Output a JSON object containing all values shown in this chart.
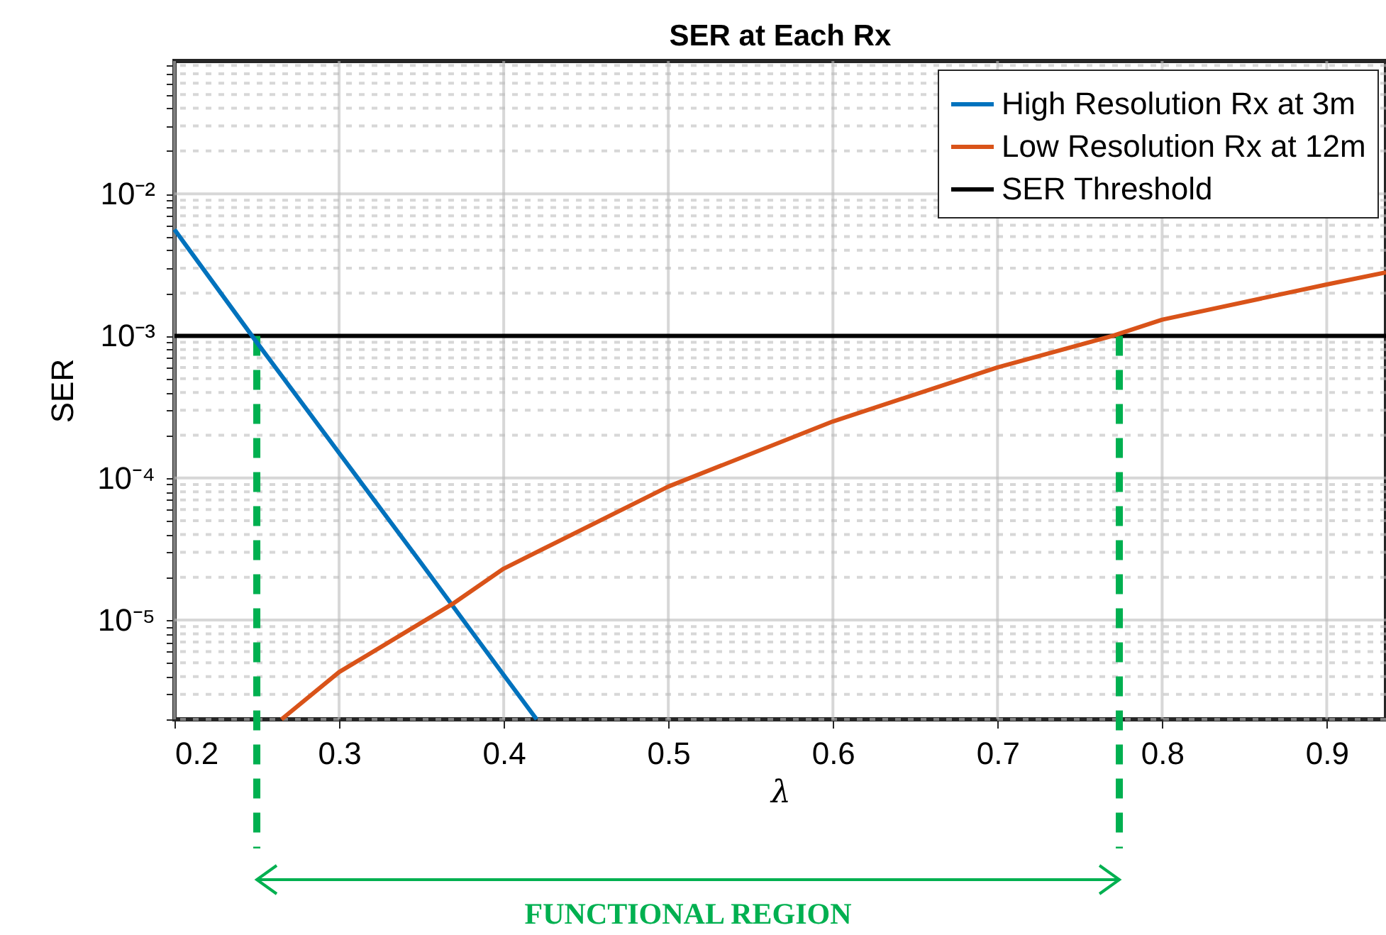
{
  "chart_data": {
    "type": "line",
    "title": "SER at Each Rx",
    "xlabel": "λ",
    "ylabel": "SER",
    "log": "y",
    "grid": true,
    "legend": "top right",
    "line_style": "solid",
    "marker": "none",
    "xlim": [
      0.2,
      0.936
    ],
    "xticks": [
      0.2,
      0.3,
      0.4,
      0.5,
      0.6,
      0.7,
      0.8,
      0.9
    ],
    "ylim": [
      2e-06,
      0.086
    ],
    "yticks": [
      {
        "value": 2e-06,
        "label": null
      },
      {
        "value": 3e-06,
        "label": null
      },
      {
        "value": 4e-06,
        "label": null
      },
      {
        "value": 5e-06,
        "label": null
      },
      {
        "value": 6e-06,
        "label": null
      },
      {
        "value": 7e-06,
        "label": null
      },
      {
        "value": 8e-06,
        "label": null
      },
      {
        "value": 9e-06,
        "label": null
      },
      {
        "value": 1e-05,
        "label": "10⁻⁵"
      },
      {
        "value": 2e-05,
        "label": null
      },
      {
        "value": 3e-05,
        "label": null
      },
      {
        "value": 4e-05,
        "label": null
      },
      {
        "value": 5e-05,
        "label": null
      },
      {
        "value": 6e-05,
        "label": null
      },
      {
        "value": 7e-05,
        "label": null
      },
      {
        "value": 8e-05,
        "label": null
      },
      {
        "value": 9e-05,
        "label": null
      },
      {
        "value": 0.0001,
        "label": "10⁻⁴"
      },
      {
        "value": 0.0002,
        "label": null
      },
      {
        "value": 0.0003,
        "label": null
      },
      {
        "value": 0.0004,
        "label": null
      },
      {
        "value": 0.0005,
        "label": null
      },
      {
        "value": 0.0006,
        "label": null
      },
      {
        "value": 0.0007,
        "label": null
      },
      {
        "value": 0.0008,
        "label": null
      },
      {
        "value": 0.0009,
        "label": null
      },
      {
        "value": 0.001,
        "label": "10⁻³"
      },
      {
        "value": 0.002,
        "label": null
      },
      {
        "value": 0.003,
        "label": null
      },
      {
        "value": 0.004,
        "label": null
      },
      {
        "value": 0.005,
        "label": null
      },
      {
        "value": 0.006,
        "label": null
      },
      {
        "value": 0.007,
        "label": null
      },
      {
        "value": 0.008,
        "label": null
      },
      {
        "value": 0.009,
        "label": null
      },
      {
        "value": 0.01,
        "label": "10⁻²"
      },
      {
        "value": 0.02,
        "label": null
      },
      {
        "value": 0.03,
        "label": null
      },
      {
        "value": 0.04,
        "label": null
      },
      {
        "value": 0.05,
        "label": null
      },
      {
        "value": 0.06,
        "label": null
      },
      {
        "value": 0.07,
        "label": null
      },
      {
        "value": 0.08,
        "label": null
      }
    ],
    "series": [
      {
        "name": "High Resolution Rx at 3m",
        "color": "#0072bd",
        "x": [
          0.2,
          0.25,
          0.3,
          0.35,
          0.4,
          0.42
        ],
        "values": [
          0.0056,
          0.0009,
          0.00015,
          2.5e-05,
          4.1e-06,
          2e-06
        ]
      },
      {
        "name": "Low Resolution Rx at 12m",
        "color": "#d95319",
        "x": [
          0.265,
          0.3,
          0.369,
          0.4,
          0.5,
          0.6,
          0.7,
          0.77,
          0.8,
          0.9,
          0.936
        ],
        "values": [
          2e-06,
          4.3e-06,
          1.3e-05,
          2.3e-05,
          8.7e-05,
          0.00025,
          0.0006,
          0.001,
          0.0013,
          0.0023,
          0.0028
        ]
      }
    ],
    "ref_lines": [
      {
        "axis": "y",
        "value": 0.001,
        "label": "SER Threshold",
        "color": "#000000"
      },
      {
        "axis": "x",
        "value": 0.25,
        "color": "#00b050",
        "line_style": "dashed"
      },
      {
        "axis": "x",
        "value": 0.774,
        "color": "#00b050",
        "line_style": "dashed"
      }
    ],
    "annotations": [
      "FUNCTIONAL REGION"
    ]
  }
}
